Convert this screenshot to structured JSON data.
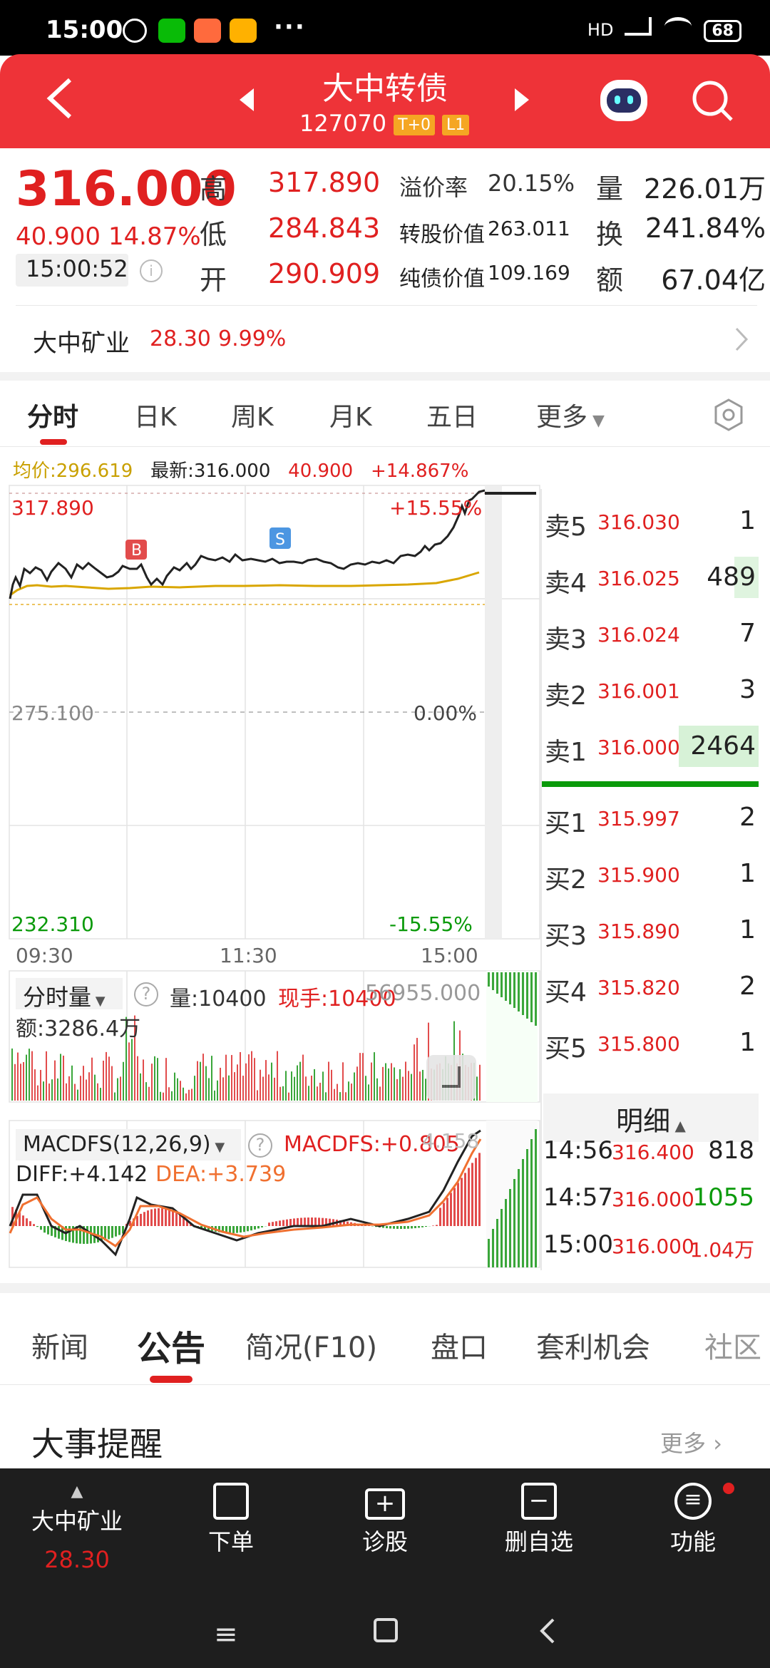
{
  "status_bar": {
    "time": "15:00",
    "dots": "···",
    "network": "HD",
    "battery": "68"
  },
  "header": {
    "title": "大中转债",
    "code": "127070",
    "tag1": "T+0",
    "tag2": "L1"
  },
  "quote": {
    "price": "316.000",
    "change": "40.900",
    "change_pct": "14.87%",
    "time": "15:00:52",
    "high_label": "高",
    "high": "317.890",
    "low_label": "低",
    "low": "284.843",
    "open_label": "开",
    "open": "290.909",
    "premium_label": "溢价率",
    "premium": "20.15%",
    "conv_label": "转股价值",
    "conv": "263.011",
    "bond_label": "纯债价值",
    "bond": "109.169",
    "vol_label": "量",
    "vol": "226.01万",
    "turn_label": "换",
    "turn": "241.84%",
    "amt_label": "额",
    "amt": "67.04亿"
  },
  "related": {
    "name": "大中矿业",
    "price": "28.30",
    "pct": "9.99%"
  },
  "chart_tabs": [
    "分时",
    "日K",
    "周K",
    "月K",
    "五日",
    "更多"
  ],
  "info_line": {
    "avg": "均价:296.619",
    "latest": "最新:316.000",
    "chg": "40.900",
    "pct": "+14.867%"
  },
  "chart_labels": {
    "top": "317.890",
    "top_pct": "+15.55%",
    "mid": "275.100",
    "mid_pct": "0.00%",
    "bottom": "232.310",
    "bottom_pct": "-15.55%",
    "t1": "09:30",
    "t2": "11:30",
    "t3": "15:00",
    "marker_b": "B",
    "marker_s": "S"
  },
  "volume_panel": {
    "name": "分时量",
    "vol": "量:10400",
    "now": "现手:10400",
    "max": "56955.000",
    "amount": "额:3286.4万"
  },
  "macd_panel": {
    "name": "MACDFS(12,26,9)",
    "macd": "MACDFS:+0.805",
    "max": "4.158",
    "diff": "DIFF:+4.142",
    "dea": "DEA:+3.739"
  },
  "chart_data": {
    "type": "line",
    "x": [
      "09:30",
      "11:30",
      "15:00"
    ],
    "series": [],
    "ylim": [
      232.31,
      317.89
    ]
  },
  "order_book": {
    "asks": [
      {
        "label": "卖5",
        "price": "316.030",
        "qty": "1"
      },
      {
        "label": "卖4",
        "price": "316.025",
        "qty": "489"
      },
      {
        "label": "卖3",
        "price": "316.024",
        "qty": "7"
      },
      {
        "label": "卖2",
        "price": "316.001",
        "qty": "3"
      },
      {
        "label": "卖1",
        "price": "316.000",
        "qty": "2464"
      }
    ],
    "bids": [
      {
        "label": "买1",
        "price": "315.997",
        "qty": "2"
      },
      {
        "label": "买2",
        "price": "315.900",
        "qty": "1"
      },
      {
        "label": "买3",
        "price": "315.890",
        "qty": "1"
      },
      {
        "label": "买4",
        "price": "315.820",
        "qty": "2"
      },
      {
        "label": "买5",
        "price": "315.800",
        "qty": "1"
      }
    ]
  },
  "details": {
    "title": "明细",
    "rows": [
      {
        "time": "14:56",
        "price": "316.400",
        "qty": "818"
      },
      {
        "time": "14:57",
        "price": "316.000",
        "qty": "1055"
      },
      {
        "time": "15:00",
        "price": "316.000",
        "qty": "1.04万"
      }
    ]
  },
  "news_tabs": [
    "新闻",
    "公告",
    "简况(F10)",
    "盘口",
    "套利机会",
    "社区"
  ],
  "events": {
    "title": "大事提醒",
    "more": "更多"
  },
  "bottom_nav": {
    "stock_name": "大中矿业",
    "stock_price": "28.30",
    "items": [
      "下单",
      "诊股",
      "删自选",
      "功能"
    ]
  },
  "colors": {
    "brand": "#ee3338",
    "up": "#e02020",
    "down": "#0a9a0a"
  }
}
